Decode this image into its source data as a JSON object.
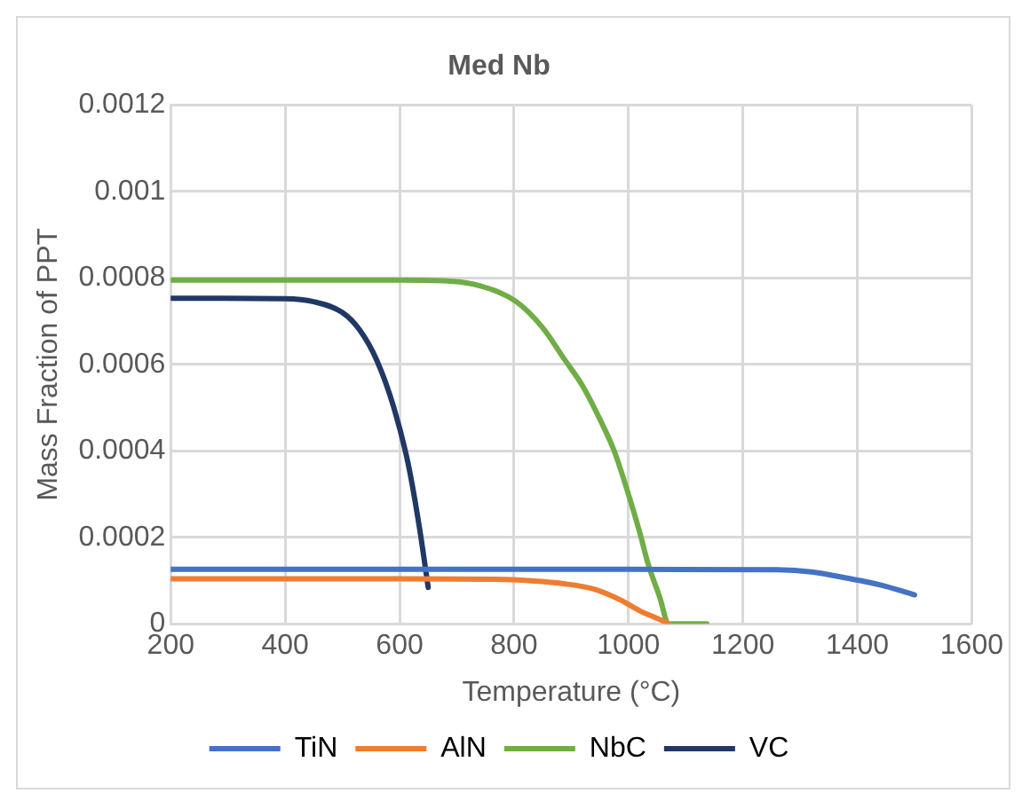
{
  "chart_data": {
    "type": "line",
    "title": "Med Nb",
    "xlabel": "Temperature (°C)",
    "ylabel": "Mass Fraction of PPT",
    "xlim": [
      200,
      1600
    ],
    "xticks": [
      200,
      400,
      600,
      800,
      1000,
      1200,
      1400,
      1600
    ],
    "ylim": [
      0,
      0.0012
    ],
    "yticks": [
      0,
      0.0002,
      0.0004,
      0.0006,
      0.0008,
      0.001,
      0.0012
    ],
    "grid": true,
    "legend": "bottom",
    "marker": "none",
    "line_style": "solid",
    "series": [
      {
        "name": "TiN",
        "color": "#4472c4",
        "x": [
          200,
          600,
          1000,
          1260,
          1320,
          1380,
          1440,
          1500
        ],
        "values": [
          0.000126,
          0.000126,
          0.000126,
          0.000125,
          0.00012,
          0.000106,
          9e-05,
          6.7e-05
        ]
      },
      {
        "name": "AlN",
        "color": "#ed7d31",
        "x": [
          200,
          600,
          768,
          830,
          889,
          940,
          986,
          1020,
          1058,
          1070
        ],
        "values": [
          0.000104,
          0.000104,
          0.000103,
          9.95e-05,
          9.24e-05,
          8e-05,
          5.5e-05,
          3e-05,
          8e-06,
          0
        ]
      },
      {
        "name": "NbC",
        "color": "#70ad47",
        "x": [
          200,
          600,
          683,
          740,
          804,
          850,
          889,
          920,
          949,
          975,
          998,
          1020,
          1034,
          1055,
          1070,
          1137
        ],
        "values": [
          0.000795,
          0.000795,
          0.000793,
          0.000782,
          0.000745,
          0.000685,
          0.00061,
          0.00055,
          0.000476,
          0.0004,
          0.000308,
          0.00021,
          0.00014,
          6e-05,
          0,
          0
        ]
      },
      {
        "name": "VC",
        "color": "#203864",
        "x": [
          200,
          400,
          450,
          500,
          530,
          560,
          590,
          615,
          635,
          650
        ],
        "values": [
          0.000753,
          0.000752,
          0.000745,
          0.00072,
          0.00068,
          0.00061,
          0.0005,
          0.00037,
          0.00022,
          8.4e-05
        ]
      }
    ]
  }
}
